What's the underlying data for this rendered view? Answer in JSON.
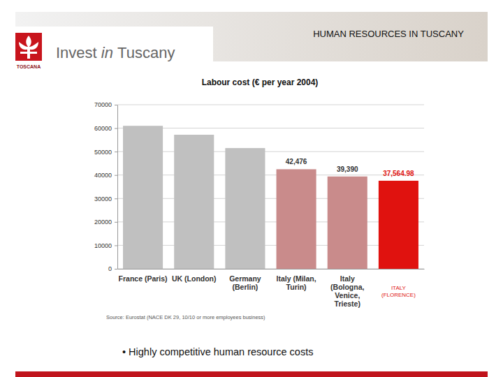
{
  "header": {
    "title": "HUMAN RESOURCES IN TUSCANY",
    "logo": "Invest in Tuscany",
    "logo_caption": "TOSCANA"
  },
  "chart_data": {
    "type": "bar",
    "title": "Labour cost (€ per year 2004)",
    "categories": [
      "France (Paris)",
      "UK (London)",
      "Germany\n(Berlin)",
      "Italy (Milan,\nTurin)",
      "Italy\n(Bologna,\nVenice,\nTrieste)",
      "ITALY\n(FLORENCE)"
    ],
    "values": [
      61000,
      57200,
      51500,
      42476,
      39390,
      37564.98
    ],
    "value_labels": [
      null,
      null,
      null,
      "42,476",
      "39,390",
      "37,564.98"
    ],
    "colors": [
      "#c0c0c0",
      "#c0c0c0",
      "#c0c0c0",
      "#c98b8b",
      "#c98b8b",
      "#e0120f"
    ],
    "ylim": [
      0,
      70000
    ],
    "yticks": [
      0,
      10000,
      20000,
      30000,
      40000,
      50000,
      60000,
      70000
    ],
    "grid": true,
    "data_labels": true,
    "source": "Source: Eurostat (NACE DK 29, 10/10 or more employees business)"
  },
  "footer": {
    "bullet": "• Highly competitive human resource costs"
  }
}
